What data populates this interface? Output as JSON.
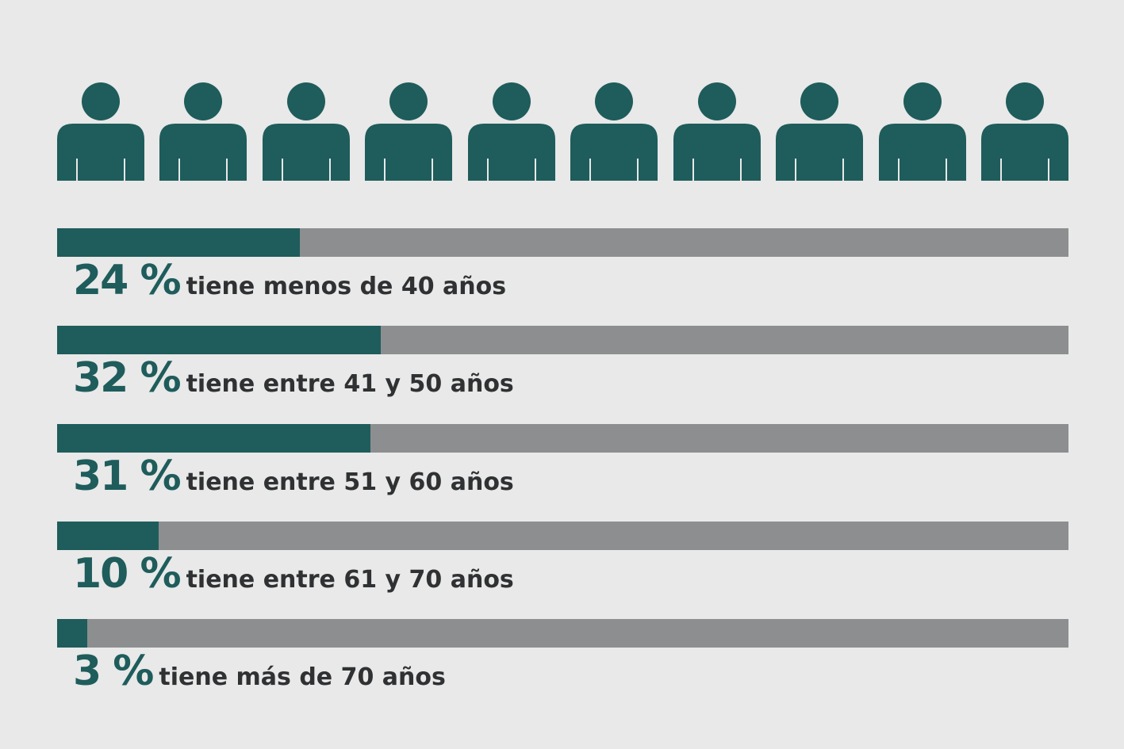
{
  "icon": "person-icon",
  "icon_count": 10,
  "colors": {
    "background": "#e8e9e8",
    "accent": "#1f5c5c",
    "track": "#8d8e8f",
    "text": "#2f3133"
  },
  "chart_data": {
    "type": "bar",
    "orientation": "horizontal",
    "xlim": [
      0,
      100
    ],
    "grid": false,
    "legend": "none",
    "categories": [
      "tiene menos de 40 años",
      "tiene entre 41 y 50 años",
      "tiene entre 51 y 60 años",
      "tiene entre 61 y 70 años",
      "tiene más de 70 años"
    ],
    "values": [
      24,
      32,
      31,
      10,
      3
    ],
    "value_labels": [
      "24 %",
      "32 %",
      "31 %",
      "10 %",
      "3 %"
    ]
  }
}
